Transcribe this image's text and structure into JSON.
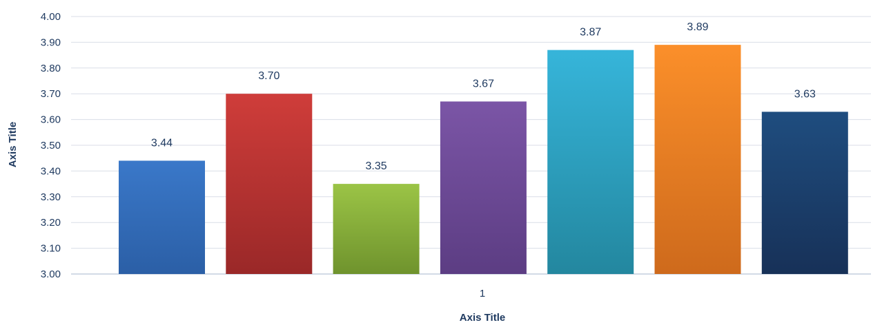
{
  "chart_data": {
    "type": "bar",
    "categories": [
      "1"
    ],
    "series": [
      {
        "values": [
          3.44
        ],
        "color": "#3a78c9",
        "color_dark": "#2b5fa6"
      },
      {
        "values": [
          3.7
        ],
        "color": "#cf3d3a",
        "color_dark": "#9a2828"
      },
      {
        "values": [
          3.35
        ],
        "color": "#9bc446",
        "color_dark": "#6f932d"
      },
      {
        "values": [
          3.67
        ],
        "color": "#7b55a6",
        "color_dark": "#5c3d83"
      },
      {
        "values": [
          3.87
        ],
        "color": "#36b5da",
        "color_dark": "#23879f"
      },
      {
        "values": [
          3.89
        ],
        "color": "#fb8f2a",
        "color_dark": "#ce6a1c"
      },
      {
        "values": [
          3.63
        ],
        "color": "#1f4d7f",
        "color_dark": "#173158"
      }
    ],
    "data_labels": [
      "3.44",
      "3.70",
      "3.35",
      "3.67",
      "3.87",
      "3.89",
      "3.63"
    ],
    "xlabel": "Axis Title",
    "ylabel": "Axis Title",
    "ylim": [
      3.0,
      4.0
    ],
    "yticks": [
      "3.00",
      "3.10",
      "3.20",
      "3.30",
      "3.40",
      "3.50",
      "3.60",
      "3.70",
      "3.80",
      "3.90",
      "4.00"
    ],
    "grid": true,
    "legend": "none",
    "text_color": "#1f3a60",
    "grid_color": "#d9dee7"
  }
}
